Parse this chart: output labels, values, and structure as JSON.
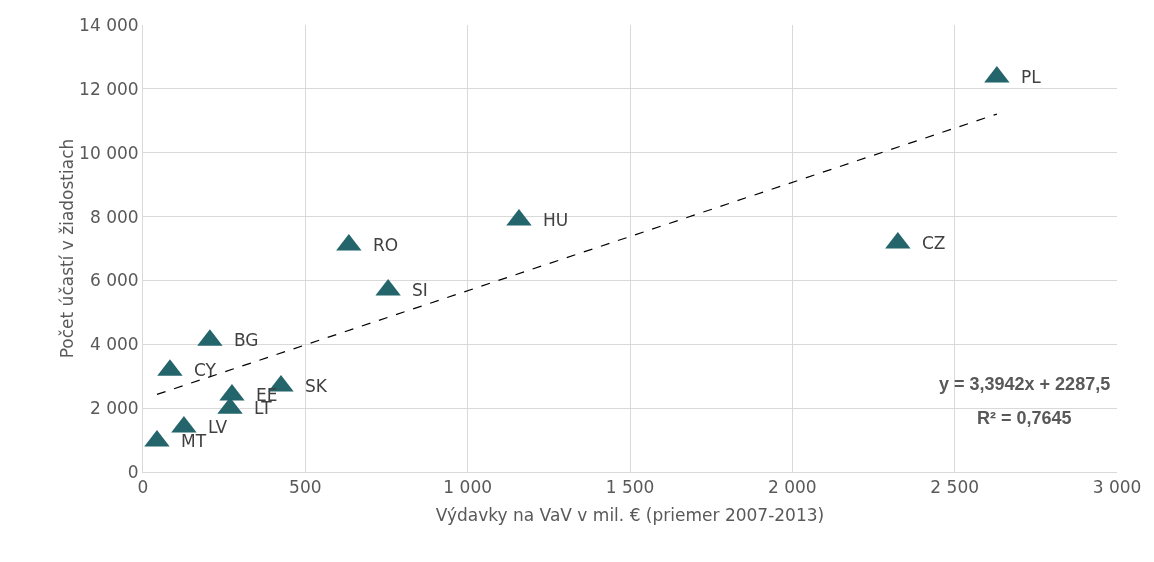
{
  "chart_data": {
    "type": "scatter",
    "xlabel": "Výdavky na VaV v mil. € (priemer 2007-2013)",
    "ylabel": "Počet účastí v žiadostiach",
    "xlim": [
      0,
      3000
    ],
    "xticks": [
      0,
      500,
      {
        "value": 1000,
        "label": "1 000"
      },
      {
        "value": 1500,
        "label": "1 500"
      },
      {
        "value": 2000,
        "label": "2 000"
      },
      {
        "value": 2500,
        "label": "2 500"
      },
      {
        "value": 3000,
        "label": "3 000"
      }
    ],
    "ylim": [
      0,
      14000
    ],
    "yticks": [
      0,
      {
        "value": 2000,
        "label": "2 000"
      },
      {
        "value": 4000,
        "label": "4 000"
      },
      {
        "value": 6000,
        "label": "6 000"
      },
      {
        "value": 8000,
        "label": "8 000"
      },
      {
        "value": 10000,
        "label": "10 000"
      },
      {
        "value": 12000,
        "label": "12 000"
      },
      {
        "value": 14000,
        "label": "14 000"
      }
    ],
    "grid": true,
    "series": [
      {
        "marker": "triangle",
        "color": "#23656b",
        "x": [
          2630,
          2325,
          1158,
          634,
          755,
          206,
          83,
          425,
          274,
          268,
          126,
          43
        ],
        "values": [
          12370,
          7170,
          7890,
          7110,
          5700,
          4130,
          3190,
          2690,
          2410,
          2000,
          1410,
          970
        ]
      },
      {
        "type": "line",
        "color": "#000000",
        "line_style": "dashed",
        "x": [
          43,
          2630
        ],
        "values": [
          2430,
          11210
        ]
      }
    ],
    "annotations": [
      {
        "text": "PL",
        "x": 2630,
        "y": 12370
      },
      {
        "text": "CZ",
        "x": 2325,
        "y": 7170
      },
      {
        "text": "HU",
        "x": 1158,
        "y": 7890
      },
      {
        "text": "RO",
        "x": 634,
        "y": 7110
      },
      {
        "text": "SI",
        "x": 755,
        "y": 5700
      },
      {
        "text": "BG",
        "x": 206,
        "y": 4130
      },
      {
        "text": "CY",
        "x": 83,
        "y": 3190
      },
      {
        "text": "SK",
        "x": 425,
        "y": 2690
      },
      {
        "text": "EE",
        "x": 274,
        "y": 2410
      },
      {
        "text": "LT",
        "x": 268,
        "y": 2000
      },
      {
        "text": "LV",
        "x": 126,
        "y": 1410
      },
      {
        "text": "MT",
        "x": 43,
        "y": 970
      },
      "y = 3,3942x + 2287,5",
      "R² = 0,7645"
    ]
  }
}
